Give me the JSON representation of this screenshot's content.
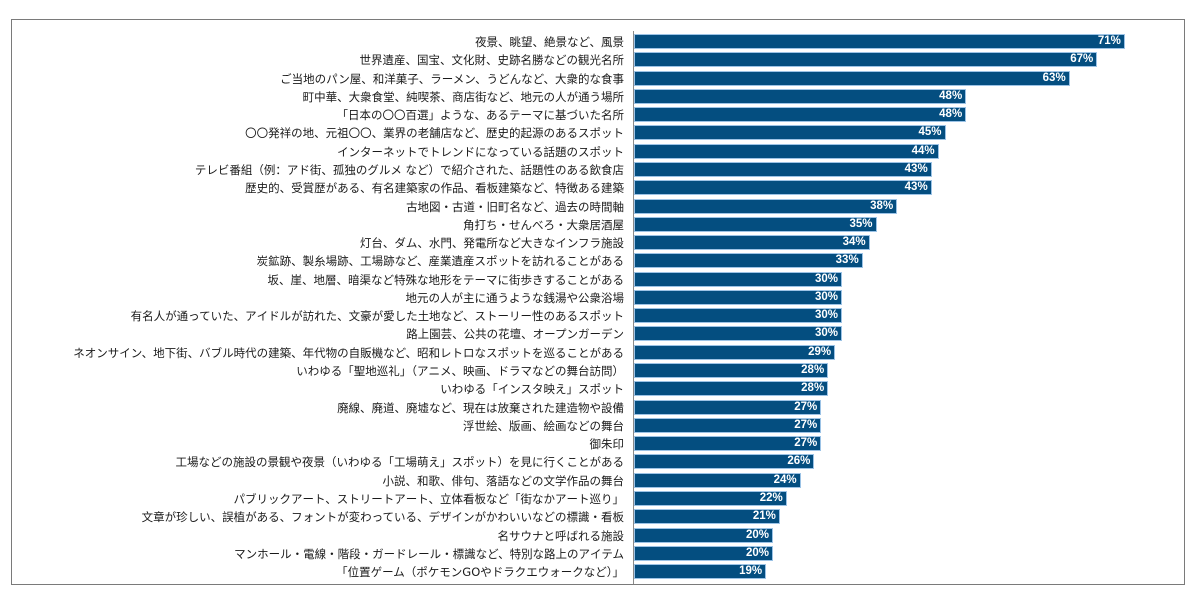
{
  "chart_data": {
    "type": "bar",
    "orientation": "horizontal",
    "title": "",
    "xlabel": "",
    "ylabel": "",
    "value_suffix": "%",
    "xlim": [
      0,
      80
    ],
    "grid": false,
    "legend": null,
    "bar_color": "#044e80",
    "bar_outline_color": "#9cc3e6",
    "categories": [
      "夜景、眺望、絶景など、風景",
      "世界遺産、国宝、文化財、史跡名勝などの観光名所",
      "ご当地のパン屋、和洋菓子、ラーメン、うどんなど、大衆的な食事",
      "町中華、大衆食堂、純喫茶、商店街など、地元の人が通う場所",
      "「日本の〇〇百選」ような、あるテーマに基づいた名所",
      "〇〇発祥の地、元祖〇〇、業界の老舗店など、歴史的起源のあるスポット",
      "インターネットでトレンドになっている話題のスポット",
      "テレビ番組（例：アド街、孤独のグルメ など）で紹介された、話題性のある飲食店",
      "歴史的、受賞歴がある、有名建築家の作品、看板建築など、特徴ある建築",
      "古地図・古道・旧町名など、過去の時間軸",
      "角打ち・せんべろ・大衆居酒屋",
      "灯台、ダム、水門、発電所など大きなインフラ施設",
      "炭鉱跡、製糸場跡、工場跡など、産業遺産スポットを訪れることがある",
      "坂、崖、地層、暗渠など特殊な地形をテーマに街歩きすることがある",
      "地元の人が主に通うような銭湯や公衆浴場",
      "有名人が通っていた、アイドルが訪れた、文豪が愛した土地など、ストーリー性のあるスポット",
      "路上園芸、公共の花壇、オープンガーデン",
      "ネオンサイン、地下街、バブル時代の建築、年代物の自販機など、昭和レトロなスポットを巡ることがある",
      "いわゆる「聖地巡礼」（アニメ、映画、ドラマなどの舞台訪問）",
      "いわゆる「インスタ映え」スポット",
      "廃線、廃道、廃墟など、現在は放棄された建造物や設備",
      "浮世絵、版画、絵画などの舞台",
      "御朱印",
      "工場などの施設の景観や夜景（いわゆる「工場萌え」スポット）を見に行くことがある",
      "小説、和歌、俳句、落語などの文学作品の舞台",
      "パブリックアート、ストリートアート、立体看板など「街なかアート巡り」",
      "文章が珍しい、誤植がある、フォントが変わっている、デザインがかわいいなどの標識・看板",
      "名サウナと呼ばれる施設",
      "マンホール・電線・階段・ガードレール・標識など、特別な路上のアイテム",
      "「位置ゲーム（ポケモンGOやドラクエウォークなど）」"
    ],
    "values": [
      71,
      67,
      63,
      48,
      48,
      45,
      44,
      43,
      43,
      38,
      35,
      34,
      33,
      30,
      30,
      30,
      30,
      29,
      28,
      28,
      27,
      27,
      27,
      26,
      24,
      22,
      21,
      20,
      20,
      19
    ]
  }
}
